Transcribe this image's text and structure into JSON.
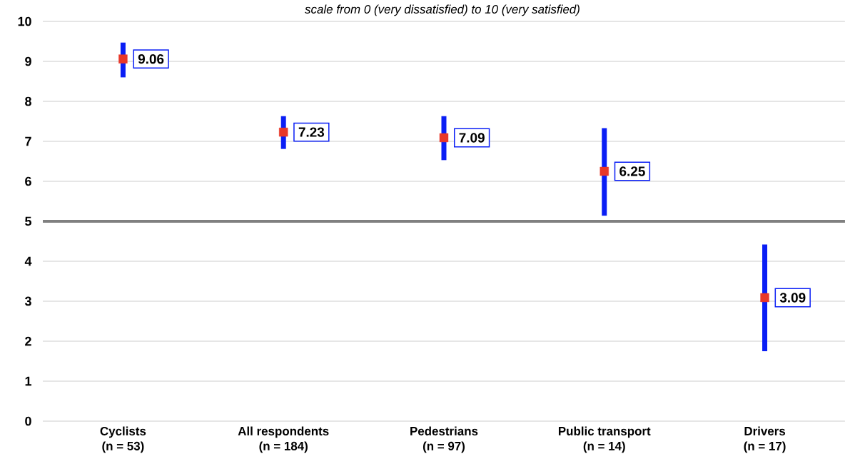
{
  "chart_data": {
    "type": "scatter",
    "subtitle": "scale from 0 (very dissatisfied) to 10 (very satisfied)",
    "categories": [
      "Cyclists (n = 53)",
      "All respondents (n = 184)",
      "Pedestrians (n = 97)",
      "Public transport (n = 14)",
      "Drivers (n = 17)"
    ],
    "values": [
      9.06,
      7.23,
      7.09,
      6.25,
      3.09
    ],
    "errors": [
      [
        8.6,
        9.47
      ],
      [
        6.81,
        7.63
      ],
      [
        6.53,
        7.63
      ],
      [
        5.14,
        7.33
      ],
      [
        1.75,
        4.42
      ]
    ],
    "color": "#e8382a",
    "marker": "square",
    "data_labels": true,
    "grid": "y",
    "ylim": [
      0,
      10
    ],
    "yticks": [
      0,
      1,
      2,
      3,
      4,
      5,
      6,
      7,
      8,
      9,
      10
    ],
    "ref_lines": [
      {
        "axis": "y",
        "value": 5,
        "color": "#808080"
      }
    ]
  }
}
